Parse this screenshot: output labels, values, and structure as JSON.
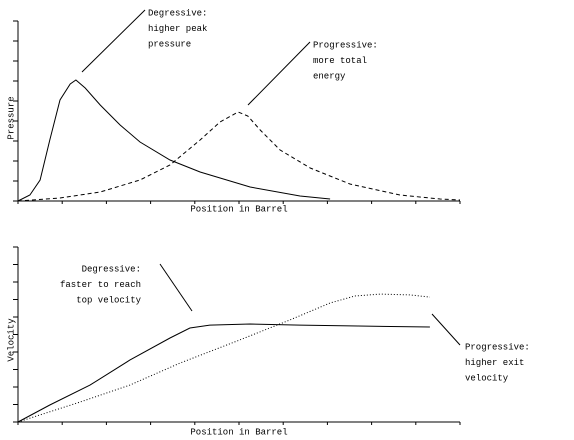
{
  "chart_data": [
    {
      "type": "line",
      "x_label": "Position in Barrel",
      "y_label": "Pressure",
      "xlim": [
        0,
        10
      ],
      "ylim": [
        0,
        9
      ],
      "xticks": [
        0,
        1,
        2,
        3,
        4,
        5,
        6,
        7,
        8,
        9,
        10
      ],
      "yticks": [
        0,
        1,
        2,
        3,
        4,
        5,
        6,
        7,
        8,
        9
      ],
      "show_tick_labels": false,
      "series": [
        {
          "color": "#000000",
          "style": "solid",
          "x": [
            0,
            0.27,
            0.5,
            0.72,
            0.95,
            1.18,
            1.31,
            1.52,
            1.86,
            2.31,
            2.76,
            3.44,
            4.12,
            5.25,
            6.38,
            7.06
          ],
          "values": [
            0,
            0.3,
            1.05,
            3.05,
            5.05,
            5.85,
            6.05,
            5.65,
            4.8,
            3.8,
            2.95,
            2.05,
            1.45,
            0.7,
            0.25,
            0.1
          ]
        },
        {
          "color": "#000000",
          "style": "dashed",
          "x": [
            0,
            0.95,
            1.86,
            2.76,
            3.44,
            4.12,
            4.57,
            4.98,
            5.2,
            5.48,
            5.93,
            6.61,
            7.51,
            8.64,
            9.55,
            10
          ],
          "values": [
            0,
            0.15,
            0.45,
            1.05,
            1.8,
            3.05,
            3.95,
            4.45,
            4.25,
            3.55,
            2.55,
            1.65,
            0.85,
            0.3,
            0.1,
            0.05
          ]
        }
      ],
      "annotations": [
        {
          "lines": [
            "Degressive:",
            "higher peak",
            "pressure"
          ]
        },
        {
          "lines": [
            "Progressive:",
            "more total",
            "energy"
          ]
        }
      ]
    },
    {
      "type": "line",
      "x_label": "Position in Barrel",
      "y_label": "Velocity",
      "xlim": [
        0,
        10
      ],
      "ylim": [
        0,
        10
      ],
      "xticks": [
        0,
        1,
        2,
        3,
        4,
        5,
        6,
        7,
        8,
        9,
        10
      ],
      "yticks": [
        0,
        1,
        2,
        3,
        4,
        5,
        6,
        7,
        8,
        9,
        10
      ],
      "show_tick_labels": false,
      "series": [
        {
          "color": "#000000",
          "style": "solid",
          "x": [
            0,
            0.72,
            1.63,
            2.53,
            3.44,
            3.89,
            4.34,
            5.25,
            6.38,
            7.51,
            9.32
          ],
          "values": [
            0,
            0.97,
            2.11,
            3.54,
            4.8,
            5.37,
            5.54,
            5.6,
            5.54,
            5.49,
            5.43
          ]
        },
        {
          "color": "#000000",
          "style": "dotted",
          "x": [
            0,
            1.4,
            2.53,
            3.67,
            5.02,
            6.15,
            7.06,
            7.62,
            8.19,
            8.87,
            9.32
          ],
          "values": [
            0,
            1.14,
            2.11,
            3.37,
            4.69,
            5.83,
            6.8,
            7.2,
            7.31,
            7.26,
            7.14
          ]
        }
      ],
      "annotations": [
        {
          "lines": [
            "Degressive:",
            "faster to reach",
            "top velocity"
          ]
        },
        {
          "lines": [
            "Progressive:",
            "higher exit",
            "velocity"
          ]
        }
      ]
    }
  ]
}
